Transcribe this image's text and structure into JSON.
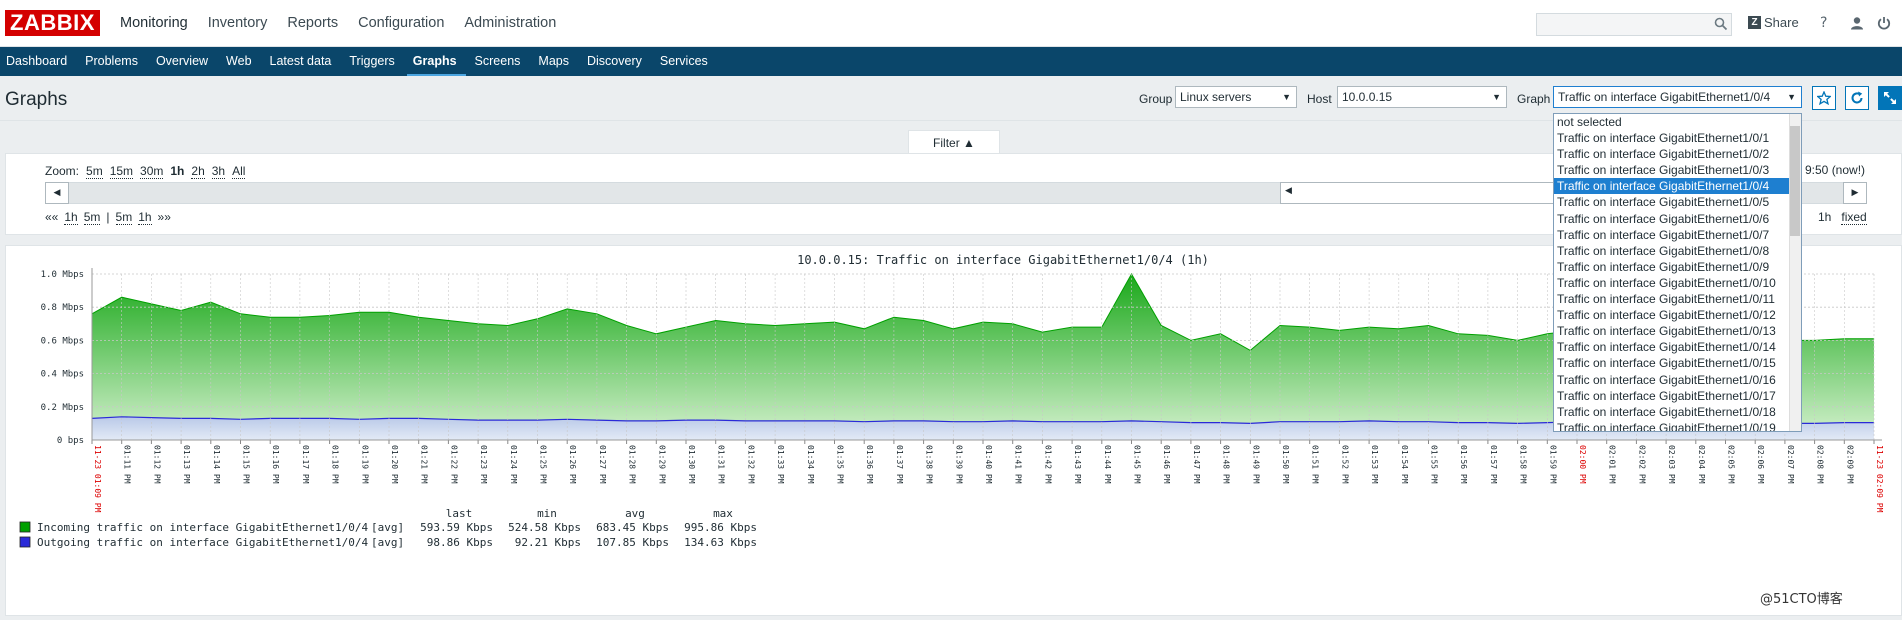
{
  "topbar": {
    "logo": "ZABBIX",
    "menu": [
      "Monitoring",
      "Inventory",
      "Reports",
      "Configuration",
      "Administration"
    ],
    "share_label": "Share",
    "help_icon": "?",
    "user_icon": "user-icon",
    "logout_icon": "power-icon"
  },
  "submenu": [
    "Dashboard",
    "Problems",
    "Overview",
    "Web",
    "Latest data",
    "Triggers",
    "Graphs",
    "Screens",
    "Maps",
    "Discovery",
    "Services"
  ],
  "header": {
    "title": "Graphs",
    "group_label": "Group",
    "group_value": "Linux servers",
    "host_label": "Host",
    "host_value": "10.0.0.15",
    "graph_label": "Graph",
    "graph_value": "Traffic on interface GigabitEthernet1/0/4"
  },
  "filter": {
    "label": "Filter ▲"
  },
  "timebar": {
    "zoom_label": "Zoom:",
    "zoom_options": [
      "5m",
      "15m",
      "30m",
      "1h",
      "2h",
      "3h",
      "All"
    ],
    "zoom_selected": "1h",
    "nav_prev_all": "«« ",
    "nav_left": [
      "1h",
      "5m"
    ],
    "nav_sep": "|",
    "nav_right": [
      "5m",
      "1h"
    ],
    "nav_next_all": "»»",
    "period_right_tail": "9:50 (now!)",
    "period_length": "1h",
    "fixed_label": "fixed"
  },
  "dropdown": {
    "items": [
      "not selected",
      "Traffic on interface GigabitEthernet1/0/1",
      "Traffic on interface GigabitEthernet1/0/2",
      "Traffic on interface GigabitEthernet1/0/3",
      "Traffic on interface GigabitEthernet1/0/4",
      "Traffic on interface GigabitEthernet1/0/5",
      "Traffic on interface GigabitEthernet1/0/6",
      "Traffic on interface GigabitEthernet1/0/7",
      "Traffic on interface GigabitEthernet1/0/8",
      "Traffic on interface GigabitEthernet1/0/9",
      "Traffic on interface GigabitEthernet1/0/10",
      "Traffic on interface GigabitEthernet1/0/11",
      "Traffic on interface GigabitEthernet1/0/12",
      "Traffic on interface GigabitEthernet1/0/13",
      "Traffic on interface GigabitEthernet1/0/14",
      "Traffic on interface GigabitEthernet1/0/15",
      "Traffic on interface GigabitEthernet1/0/16",
      "Traffic on interface GigabitEthernet1/0/17",
      "Traffic on interface GigabitEthernet1/0/18",
      "Traffic on interface GigabitEthernet1/0/19"
    ],
    "selected_index": 4
  },
  "colors": {
    "incoming_fill": "#1aa81a",
    "incoming_line": "#00a000",
    "outgoing_line": "#2a2ad8",
    "outgoing_fill": "#b9c9e8"
  },
  "chart_data": {
    "type": "area",
    "title": "10.0.0.15: Traffic on interface GigabitEthernet1/0/4 (1h)",
    "ylabel_ticks": [
      "1.0 Mbps",
      "0.8 Mbps",
      "0.6 Mbps",
      "0.4 Mbps",
      "0.2 Mbps",
      "0 bps"
    ],
    "ylim": [
      0,
      1.0
    ],
    "x_tick_labels": [
      "11-23 01:09 PM",
      "01:11 PM",
      "01:12 PM",
      "01:13 PM",
      "01:14 PM",
      "01:15 PM",
      "01:16 PM",
      "01:17 PM",
      "01:18 PM",
      "01:19 PM",
      "01:20 PM",
      "01:21 PM",
      "01:22 PM",
      "01:23 PM",
      "01:24 PM",
      "01:25 PM",
      "01:26 PM",
      "01:27 PM",
      "01:28 PM",
      "01:29 PM",
      "01:30 PM",
      "01:31 PM",
      "01:32 PM",
      "01:33 PM",
      "01:34 PM",
      "01:35 PM",
      "01:36 PM",
      "01:37 PM",
      "01:38 PM",
      "01:39 PM",
      "01:40 PM",
      "01:41 PM",
      "01:42 PM",
      "01:43 PM",
      "01:44 PM",
      "01:45 PM",
      "01:46 PM",
      "01:47 PM",
      "01:48 PM",
      "01:49 PM",
      "01:50 PM",
      "01:51 PM",
      "01:52 PM",
      "01:53 PM",
      "01:54 PM",
      "01:55 PM",
      "01:56 PM",
      "01:57 PM",
      "01:58 PM",
      "01:59 PM",
      "02:00 PM",
      "02:01 PM",
      "02:02 PM",
      "02:03 PM",
      "02:04 PM",
      "02:05 PM",
      "02:06 PM",
      "02:07 PM",
      "02:08 PM",
      "02:09 PM",
      "11-23 02:09 PM"
    ],
    "x_tick_red": [
      0,
      50,
      60
    ],
    "series": [
      {
        "name": "Incoming traffic on interface GigabitEthernet1/0/4",
        "values": [
          0.76,
          0.86,
          0.82,
          0.78,
          0.83,
          0.76,
          0.74,
          0.74,
          0.75,
          0.77,
          0.77,
          0.74,
          0.72,
          0.7,
          0.69,
          0.73,
          0.79,
          0.76,
          0.69,
          0.64,
          0.68,
          0.72,
          0.7,
          0.69,
          0.7,
          0.71,
          0.67,
          0.74,
          0.72,
          0.67,
          0.71,
          0.7,
          0.65,
          0.68,
          0.68,
          1.0,
          0.69,
          0.6,
          0.64,
          0.54,
          0.69,
          0.68,
          0.66,
          0.68,
          0.67,
          0.69,
          0.64,
          0.63,
          0.6,
          0.64,
          0.66,
          0.68,
          0.65,
          0.67,
          0.62,
          0.63,
          0.61,
          0.6,
          0.6,
          0.61,
          0.61
        ],
        "last": "593.59 Kbps",
        "min": "524.58 Kbps",
        "avg": "683.45 Kbps",
        "max": "995.86 Kbps"
      },
      {
        "name": "Outgoing traffic on interface GigabitEthernet1/0/4",
        "values": [
          0.13,
          0.14,
          0.135,
          0.13,
          0.13,
          0.125,
          0.13,
          0.13,
          0.13,
          0.125,
          0.13,
          0.13,
          0.125,
          0.12,
          0.12,
          0.12,
          0.125,
          0.12,
          0.115,
          0.115,
          0.12,
          0.12,
          0.115,
          0.115,
          0.115,
          0.115,
          0.11,
          0.115,
          0.115,
          0.11,
          0.11,
          0.115,
          0.11,
          0.11,
          0.11,
          0.115,
          0.11,
          0.105,
          0.105,
          0.1,
          0.11,
          0.11,
          0.11,
          0.115,
          0.11,
          0.11,
          0.105,
          0.105,
          0.1,
          0.105,
          0.11,
          0.105,
          0.11,
          0.105,
          0.1,
          0.105,
          0.1,
          0.1,
          0.1,
          0.105,
          0.105
        ],
        "last": "98.86 Kbps",
        "min": "92.21 Kbps",
        "avg": "107.85 Kbps",
        "max": "134.63 Kbps"
      }
    ],
    "legend_func": "[avg]",
    "legend_headers": [
      "last",
      "min",
      "avg",
      "max"
    ]
  },
  "watermark": "@51CTO博客"
}
